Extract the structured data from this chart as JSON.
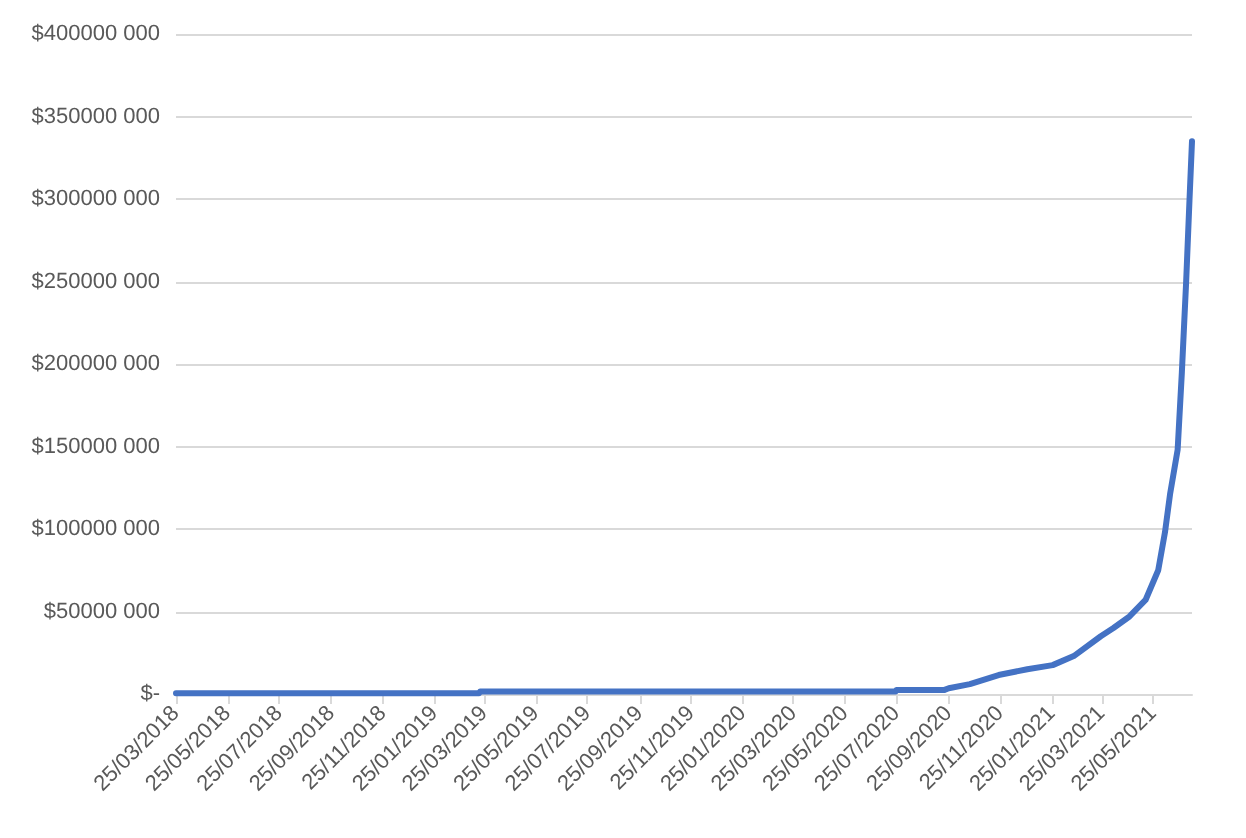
{
  "chart_data": {
    "type": "line",
    "x": [
      "2018-03-25",
      "2019-03-19",
      "2019-03-20",
      "2020-07-24",
      "2020-07-25",
      "2020-09-20",
      "2020-09-25",
      "2020-10-20",
      "2020-11-23",
      "2020-12-27",
      "2021-01-26",
      "2021-02-20",
      "2021-03-24",
      "2021-04-08",
      "2021-04-27",
      "2021-05-16",
      "2021-05-31",
      "2021-06-08",
      "2021-06-14",
      "2021-06-23",
      "2021-06-28",
      "2021-07-03",
      "2021-07-07",
      "2021-07-10"
    ],
    "series": [
      {
        "color": "#4472c4",
        "values": [
          500000,
          500000,
          1500000,
          1500000,
          2500000,
          2500000,
          3500000,
          6000000,
          11500000,
          15000000,
          17500000,
          23000000,
          35000000,
          40000000,
          47000000,
          57000000,
          75000000,
          98000000,
          121000000,
          148000000,
          195000000,
          249000000,
          299000000,
          335000000
        ]
      }
    ],
    "xlim": [
      "2018-03-25",
      "2021-07-10"
    ],
    "xticks": [
      {
        "value": "2018-03-25",
        "label": "25/03/2018"
      },
      {
        "value": "2018-05-25",
        "label": "25/05/2018"
      },
      {
        "value": "2018-07-25",
        "label": "25/07/2018"
      },
      {
        "value": "2018-09-25",
        "label": "25/09/2018"
      },
      {
        "value": "2018-11-25",
        "label": "25/11/2018"
      },
      {
        "value": "2019-01-25",
        "label": "25/01/2019"
      },
      {
        "value": "2019-03-25",
        "label": "25/03/2019"
      },
      {
        "value": "2019-05-25",
        "label": "25/05/2019"
      },
      {
        "value": "2019-07-25",
        "label": "25/07/2019"
      },
      {
        "value": "2019-09-25",
        "label": "25/09/2019"
      },
      {
        "value": "2019-11-25",
        "label": "25/11/2019"
      },
      {
        "value": "2020-01-25",
        "label": "25/01/2020"
      },
      {
        "value": "2020-03-25",
        "label": "25/03/2020"
      },
      {
        "value": "2020-05-25",
        "label": "25/05/2020"
      },
      {
        "value": "2020-07-25",
        "label": "25/07/2020"
      },
      {
        "value": "2020-09-25",
        "label": "25/09/2020"
      },
      {
        "value": "2020-11-25",
        "label": "25/11/2020"
      },
      {
        "value": "2021-01-25",
        "label": "25/01/2021"
      },
      {
        "value": "2021-03-25",
        "label": "25/03/2021"
      },
      {
        "value": "2021-05-25",
        "label": "25/05/2021"
      }
    ],
    "ylim": [
      0,
      400000000
    ],
    "yticks": [
      {
        "value": 0,
        "label": "$-"
      },
      {
        "value": 50000000,
        "label": "$50000 000"
      },
      {
        "value": 100000000,
        "label": "$100000 000"
      },
      {
        "value": 150000000,
        "label": "$150000 000"
      },
      {
        "value": 200000000,
        "label": "$200000 000"
      },
      {
        "value": 250000000,
        "label": "$250000 000"
      },
      {
        "value": 300000000,
        "label": "$300000 000"
      },
      {
        "value": 350000000,
        "label": "$350000 000"
      },
      {
        "value": 400000000,
        "label": "$400000 000"
      }
    ],
    "grid": "y",
    "line_style": "solid"
  }
}
